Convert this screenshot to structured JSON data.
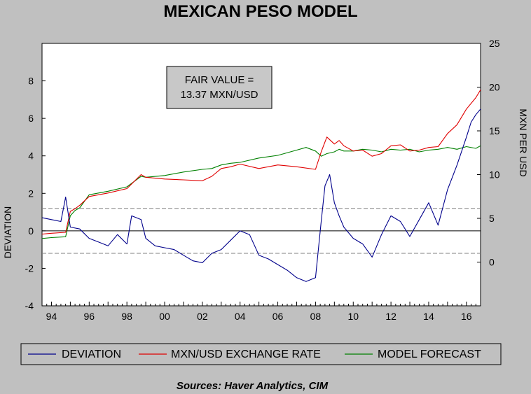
{
  "chart_data": {
    "type": "line",
    "title": "MEXICAN PESO MODEL",
    "ylabel_left": "DEVIATION",
    "ylabel_right": "MXN PER USD",
    "y_left_range": [
      -4,
      10
    ],
    "y_left_ticks": [
      "-4",
      "-2",
      "0",
      "2",
      "4",
      "6",
      "8"
    ],
    "y_right_range": [
      -5,
      25
    ],
    "y_right_ticks": [
      "0",
      "5",
      "10",
      "15",
      "20",
      "25"
    ],
    "x_range": [
      1993.5,
      2016.75
    ],
    "x_ticks": [
      "94",
      "96",
      "98",
      "00",
      "02",
      "04",
      "06",
      "08",
      "10",
      "12",
      "14",
      "16"
    ],
    "reference_lines_left": [
      0,
      1.2,
      -1.2
    ],
    "annotation": {
      "line1": "FAIR VALUE =",
      "line2": "13.37 MXN/USD"
    },
    "legend": {
      "placement": "bottom",
      "entries": [
        "DEVIATION",
        "MXN/USD EXCHANGE RATE",
        "MODEL FORECAST"
      ]
    },
    "source": "Sources:  Haver Analytics, CIM",
    "colors": {
      "deviation": "#00008b",
      "exchange_rate": "#e00000",
      "model_forecast": "#008000"
    },
    "series": [
      {
        "name": "DEVIATION",
        "axis": "left",
        "x": [
          1993.5,
          1994.0,
          1994.5,
          1994.75,
          1995.0,
          1995.5,
          1996.0,
          1996.5,
          1997.0,
          1997.5,
          1998.0,
          1998.25,
          1998.75,
          1999.0,
          1999.5,
          2000.0,
          2000.5,
          2001.0,
          2001.5,
          2002.0,
          2002.5,
          2003.0,
          2003.5,
          2004.0,
          2004.5,
          2005.0,
          2005.5,
          2006.0,
          2006.5,
          2007.0,
          2007.5,
          2008.0,
          2008.3,
          2008.5,
          2008.75,
          2009.0,
          2009.25,
          2009.5,
          2010.0,
          2010.5,
          2011.0,
          2011.5,
          2012.0,
          2012.5,
          2013.0,
          2013.5,
          2014.0,
          2014.5,
          2015.0,
          2015.5,
          2016.0,
          2016.25,
          2016.5,
          2016.75
        ],
        "values": [
          0.7,
          0.6,
          0.5,
          1.8,
          0.2,
          0.1,
          -0.4,
          -0.6,
          -0.8,
          -0.2,
          -0.7,
          0.8,
          0.6,
          -0.4,
          -0.8,
          -0.9,
          -1.0,
          -1.3,
          -1.6,
          -1.7,
          -1.2,
          -1.0,
          -0.5,
          0.0,
          -0.2,
          -1.3,
          -1.5,
          -1.8,
          -2.1,
          -2.5,
          -2.7,
          -2.5,
          0.5,
          2.4,
          3.0,
          1.5,
          0.8,
          0.2,
          -0.4,
          -0.7,
          -1.4,
          -0.2,
          0.8,
          0.5,
          -0.3,
          0.6,
          1.5,
          0.3,
          2.2,
          3.5,
          5.0,
          5.8,
          6.2,
          6.5
        ]
      },
      {
        "name": "MXN/USD EXCHANGE RATE",
        "axis": "right",
        "x": [
          1993.5,
          1994.0,
          1994.75,
          1995.0,
          1995.25,
          1995.5,
          1996.0,
          1997.0,
          1998.0,
          1998.75,
          1999.0,
          2000.0,
          2001.0,
          2002.0,
          2002.5,
          2003.0,
          2003.5,
          2004.0,
          2005.0,
          2006.0,
          2007.0,
          2008.0,
          2008.3,
          2008.6,
          2009.0,
          2009.25,
          2009.5,
          2010.0,
          2010.5,
          2011.0,
          2011.5,
          2012.0,
          2012.5,
          2013.0,
          2013.5,
          2014.0,
          2014.5,
          2015.0,
          2015.5,
          2016.0,
          2016.5,
          2016.75
        ],
        "values": [
          3.2,
          3.3,
          3.4,
          5.8,
          6.1,
          6.5,
          7.5,
          7.9,
          8.4,
          10.0,
          9.7,
          9.5,
          9.4,
          9.3,
          9.8,
          10.7,
          10.9,
          11.2,
          10.7,
          11.1,
          10.9,
          10.6,
          12.6,
          14.3,
          13.5,
          13.9,
          13.3,
          12.7,
          12.8,
          12.1,
          12.4,
          13.3,
          13.4,
          12.7,
          12.8,
          13.1,
          13.2,
          14.7,
          15.7,
          17.5,
          18.8,
          19.7
        ]
      },
      {
        "name": "MODEL FORECAST",
        "axis": "right",
        "x": [
          1993.5,
          1994.0,
          1994.75,
          1995.0,
          1995.25,
          1995.5,
          1996.0,
          1997.0,
          1998.0,
          1998.75,
          1999.0,
          2000.0,
          2001.0,
          2002.0,
          2002.5,
          2003.0,
          2003.5,
          2004.0,
          2005.0,
          2006.0,
          2007.0,
          2007.5,
          2008.0,
          2008.3,
          2008.6,
          2009.0,
          2009.25,
          2009.5,
          2010.0,
          2010.5,
          2011.0,
          2011.5,
          2012.0,
          2012.5,
          2013.0,
          2013.5,
          2014.0,
          2014.5,
          2015.0,
          2015.5,
          2016.0,
          2016.5,
          2016.75
        ],
        "values": [
          2.7,
          2.8,
          2.9,
          5.3,
          5.9,
          6.2,
          7.7,
          8.1,
          8.6,
          9.8,
          9.7,
          9.9,
          10.3,
          10.6,
          10.7,
          11.1,
          11.3,
          11.4,
          11.9,
          12.2,
          12.8,
          13.1,
          12.7,
          12.1,
          12.4,
          12.6,
          12.9,
          12.7,
          12.7,
          12.9,
          12.8,
          12.6,
          12.9,
          12.8,
          12.9,
          12.6,
          12.8,
          12.9,
          13.1,
          12.9,
          13.2,
          13.0,
          13.3
        ]
      }
    ]
  }
}
